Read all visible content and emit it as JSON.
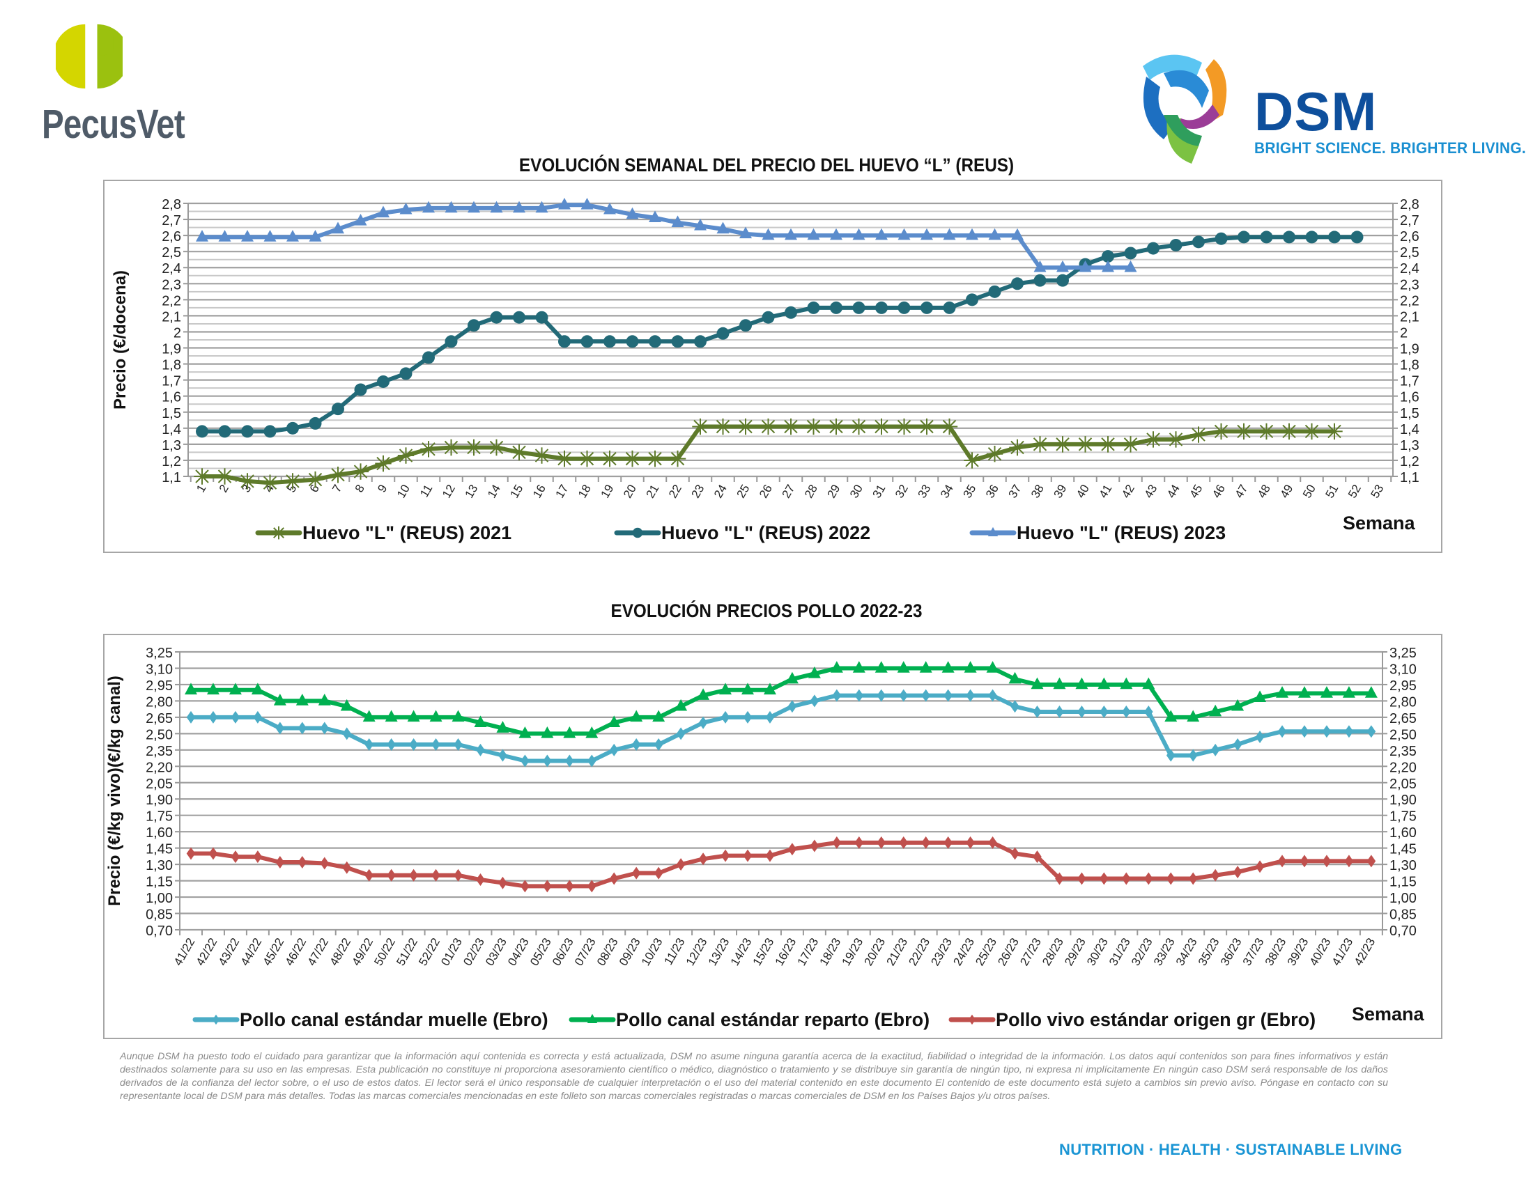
{
  "header": {
    "left_logo": {
      "name": "PecusVet",
      "colors": {
        "light": "#d4d600",
        "dark": "#9bc10f",
        "text": "#4f5b68"
      }
    },
    "right_logo": {
      "name": "DSM",
      "tagline": "BRIGHT SCIENCE. BRIGHTER LIVING.",
      "colors": {
        "name": "#0e4f9c",
        "tagline": "#1a8fd1"
      }
    }
  },
  "chart_data": [
    {
      "type": "line",
      "title": "EVOLUCIÓN SEMANAL DEL PRECIO DEL HUEVO “L” (REUS)",
      "xlabel": "Semana",
      "ylabel": "Precio (€/docena)",
      "ylim": [
        1.1,
        2.8
      ],
      "yticks": [
        "1,1",
        "1,2",
        "1,3",
        "1,4",
        "1,5",
        "1,6",
        "1,7",
        "1,8",
        "1,9",
        "2",
        "2,1",
        "2,2",
        "2,3",
        "2,4",
        "2,5",
        "2,6",
        "2,7",
        "2,8"
      ],
      "grid": true,
      "secondary_y_axis": true,
      "legend_position": "bottom",
      "x": [
        "1",
        "2",
        "3",
        "4",
        "5",
        "6",
        "7",
        "8",
        "9",
        "10",
        "11",
        "12",
        "13",
        "14",
        "15",
        "16",
        "17",
        "18",
        "19",
        "20",
        "21",
        "22",
        "23",
        "24",
        "25",
        "26",
        "27",
        "28",
        "29",
        "30",
        "31",
        "32",
        "33",
        "34",
        "35",
        "36",
        "37",
        "38",
        "39",
        "40",
        "41",
        "42",
        "43",
        "44",
        "45",
        "46",
        "47",
        "48",
        "49",
        "50",
        "51",
        "52",
        "53"
      ],
      "series": [
        {
          "name": "Huevo \"L\" (REUS) 2021",
          "color": "#5e7a2a",
          "marker": "star",
          "values": [
            1.1,
            1.1,
            1.07,
            1.06,
            1.07,
            1.08,
            1.11,
            1.13,
            1.18,
            1.23,
            1.27,
            1.28,
            1.28,
            1.28,
            1.25,
            1.23,
            1.21,
            1.21,
            1.21,
            1.21,
            1.21,
            1.21,
            1.41,
            1.41,
            1.41,
            1.41,
            1.41,
            1.41,
            1.41,
            1.41,
            1.41,
            1.41,
            1.41,
            1.41,
            1.2,
            1.24,
            1.28,
            1.3,
            1.3,
            1.3,
            1.3,
            1.3,
            1.33,
            1.33,
            1.36,
            1.38,
            1.38,
            1.38,
            1.38,
            1.38,
            1.38,
            null,
            null
          ]
        },
        {
          "name": "Huevo \"L\" (REUS) 2022",
          "color": "#226a78",
          "marker": "circle",
          "values": [
            1.38,
            1.38,
            1.38,
            1.38,
            1.4,
            1.43,
            1.52,
            1.64,
            1.69,
            1.74,
            1.84,
            1.94,
            2.04,
            2.09,
            2.09,
            2.09,
            1.94,
            1.94,
            1.94,
            1.94,
            1.94,
            1.94,
            1.94,
            1.99,
            2.04,
            2.09,
            2.12,
            2.15,
            2.15,
            2.15,
            2.15,
            2.15,
            2.15,
            2.15,
            2.2,
            2.25,
            2.3,
            2.32,
            2.32,
            2.42,
            2.47,
            2.49,
            2.52,
            2.54,
            2.56,
            2.58,
            2.59,
            2.59,
            2.59,
            2.59,
            2.59,
            2.59,
            null
          ]
        },
        {
          "name": "Huevo \"L\" (REUS) 2023",
          "color": "#5b8ccc",
          "marker": "triangle",
          "values": [
            2.59,
            2.59,
            2.59,
            2.59,
            2.59,
            2.59,
            2.64,
            2.69,
            2.74,
            2.76,
            2.77,
            2.77,
            2.77,
            2.77,
            2.77,
            2.77,
            2.79,
            2.79,
            2.76,
            2.73,
            2.71,
            2.68,
            2.66,
            2.64,
            2.61,
            2.6,
            2.6,
            2.6,
            2.6,
            2.6,
            2.6,
            2.6,
            2.6,
            2.6,
            2.6,
            2.6,
            2.6,
            2.4,
            2.4,
            2.4,
            2.4,
            2.4,
            null,
            null,
            null,
            null,
            null,
            null,
            null,
            null,
            null,
            null,
            null
          ]
        }
      ]
    },
    {
      "type": "line",
      "title": "EVOLUCIÓN PRECIOS POLLO 2022-23",
      "xlabel": "Semana",
      "ylabel": "Precio (€/kg vivo)(€/kg canal)",
      "ylim": [
        0.7,
        3.25
      ],
      "yticks": [
        "0,70",
        "0,85",
        "1,00",
        "1,15",
        "1,30",
        "1,45",
        "1,60",
        "1,75",
        "1,90",
        "2,05",
        "2,20",
        "2,35",
        "2,50",
        "2,65",
        "2,80",
        "2,95",
        "3,10",
        "3,25"
      ],
      "grid": true,
      "secondary_y_axis": true,
      "legend_position": "bottom",
      "x": [
        "41/22",
        "42/22",
        "43/22",
        "44/22",
        "45/22",
        "46/22",
        "47/22",
        "48/22",
        "49/22",
        "50/22",
        "51/22",
        "52/22",
        "01/23",
        "02/23",
        "03/23",
        "04/23",
        "05/23",
        "06/23",
        "07/23",
        "08/23",
        "09/23",
        "10/23",
        "11/23",
        "12/23",
        "13/23",
        "14/23",
        "15/23",
        "16/23",
        "17/23",
        "18/23",
        "19/23",
        "20/23",
        "21/23",
        "22/23",
        "23/23",
        "24/23",
        "25/23",
        "26/23",
        "27/23",
        "28/23",
        "29/23",
        "30/23",
        "31/23",
        "32/23",
        "33/23",
        "34/23",
        "35/23",
        "36/23",
        "37/23",
        "38/23",
        "39/23",
        "40/23",
        "41/23",
        "42/23"
      ],
      "series": [
        {
          "name": "Pollo canal estándar muelle (Ebro)",
          "color": "#4bacc6",
          "marker": "diamond",
          "values": [
            2.65,
            2.65,
            2.65,
            2.65,
            2.55,
            2.55,
            2.55,
            2.5,
            2.4,
            2.4,
            2.4,
            2.4,
            2.4,
            2.35,
            2.3,
            2.25,
            2.25,
            2.25,
            2.25,
            2.35,
            2.4,
            2.4,
            2.5,
            2.6,
            2.65,
            2.65,
            2.65,
            2.75,
            2.8,
            2.85,
            2.85,
            2.85,
            2.85,
            2.85,
            2.85,
            2.85,
            2.85,
            2.75,
            2.7,
            2.7,
            2.7,
            2.7,
            2.7,
            2.7,
            2.3,
            2.3,
            2.35,
            2.4,
            2.47,
            2.52,
            2.52,
            2.52,
            2.52,
            2.52
          ]
        },
        {
          "name": "Pollo canal estándar reparto (Ebro)",
          "color": "#00b050",
          "marker": "triangle",
          "values": [
            2.9,
            2.9,
            2.9,
            2.9,
            2.8,
            2.8,
            2.8,
            2.75,
            2.65,
            2.65,
            2.65,
            2.65,
            2.65,
            2.6,
            2.55,
            2.5,
            2.5,
            2.5,
            2.5,
            2.6,
            2.65,
            2.65,
            2.75,
            2.85,
            2.9,
            2.9,
            2.9,
            3.0,
            3.05,
            3.1,
            3.1,
            3.1,
            3.1,
            3.1,
            3.1,
            3.1,
            3.1,
            3.0,
            2.95,
            2.95,
            2.95,
            2.95,
            2.95,
            2.95,
            2.65,
            2.65,
            2.7,
            2.75,
            2.83,
            2.87,
            2.87,
            2.87,
            2.87,
            2.87
          ]
        },
        {
          "name": "Pollo vivo estándar origen gr (Ebro)",
          "color": "#c0504d",
          "marker": "diamond",
          "values": [
            1.4,
            1.4,
            1.37,
            1.37,
            1.32,
            1.32,
            1.31,
            1.27,
            1.2,
            1.2,
            1.2,
            1.2,
            1.2,
            1.16,
            1.13,
            1.1,
            1.1,
            1.1,
            1.1,
            1.17,
            1.22,
            1.22,
            1.3,
            1.35,
            1.38,
            1.38,
            1.38,
            1.44,
            1.47,
            1.5,
            1.5,
            1.5,
            1.5,
            1.5,
            1.5,
            1.5,
            1.5,
            1.4,
            1.37,
            1.17,
            1.17,
            1.17,
            1.17,
            1.17,
            1.17,
            1.17,
            1.2,
            1.23,
            1.28,
            1.33,
            1.33,
            1.33,
            1.33,
            1.33
          ]
        }
      ]
    }
  ],
  "disclaimer": "Aunque DSM ha puesto todo el cuidado para garantizar que la información aquí contenida es correcta y está actualizada, DSM no asume ninguna garantía acerca de la exactitud, fiabilidad o integridad de la información. Los datos aquí contenidos son para fines informativos y están destinados solamente para su uso en las empresas. Esta publicación no constituye ni proporciona asesoramiento científico o médico, diagnóstico o tratamiento y se distribuye sin garantía de ningún tipo, ni expresa ni implícitamente En ningún caso DSM será responsable de los daños derivados de la confianza del lector sobre, o el uso de estos datos. El lector será el único responsable de cualquier interpretación o el uso del material contenido en este documento El contenido de este documento está sujeto a cambios sin previo aviso. Póngase en contacto con su representante local de DSM para más detalles. Todas las marcas comerciales mencionadas en este folleto son marcas comerciales registradas o marcas comerciales de DSM en los Países Bajos y/u otros países.",
  "footer": {
    "tagline": "NUTRITION  ·  HEALTH  ·  SUSTAINABLE LIVING"
  }
}
